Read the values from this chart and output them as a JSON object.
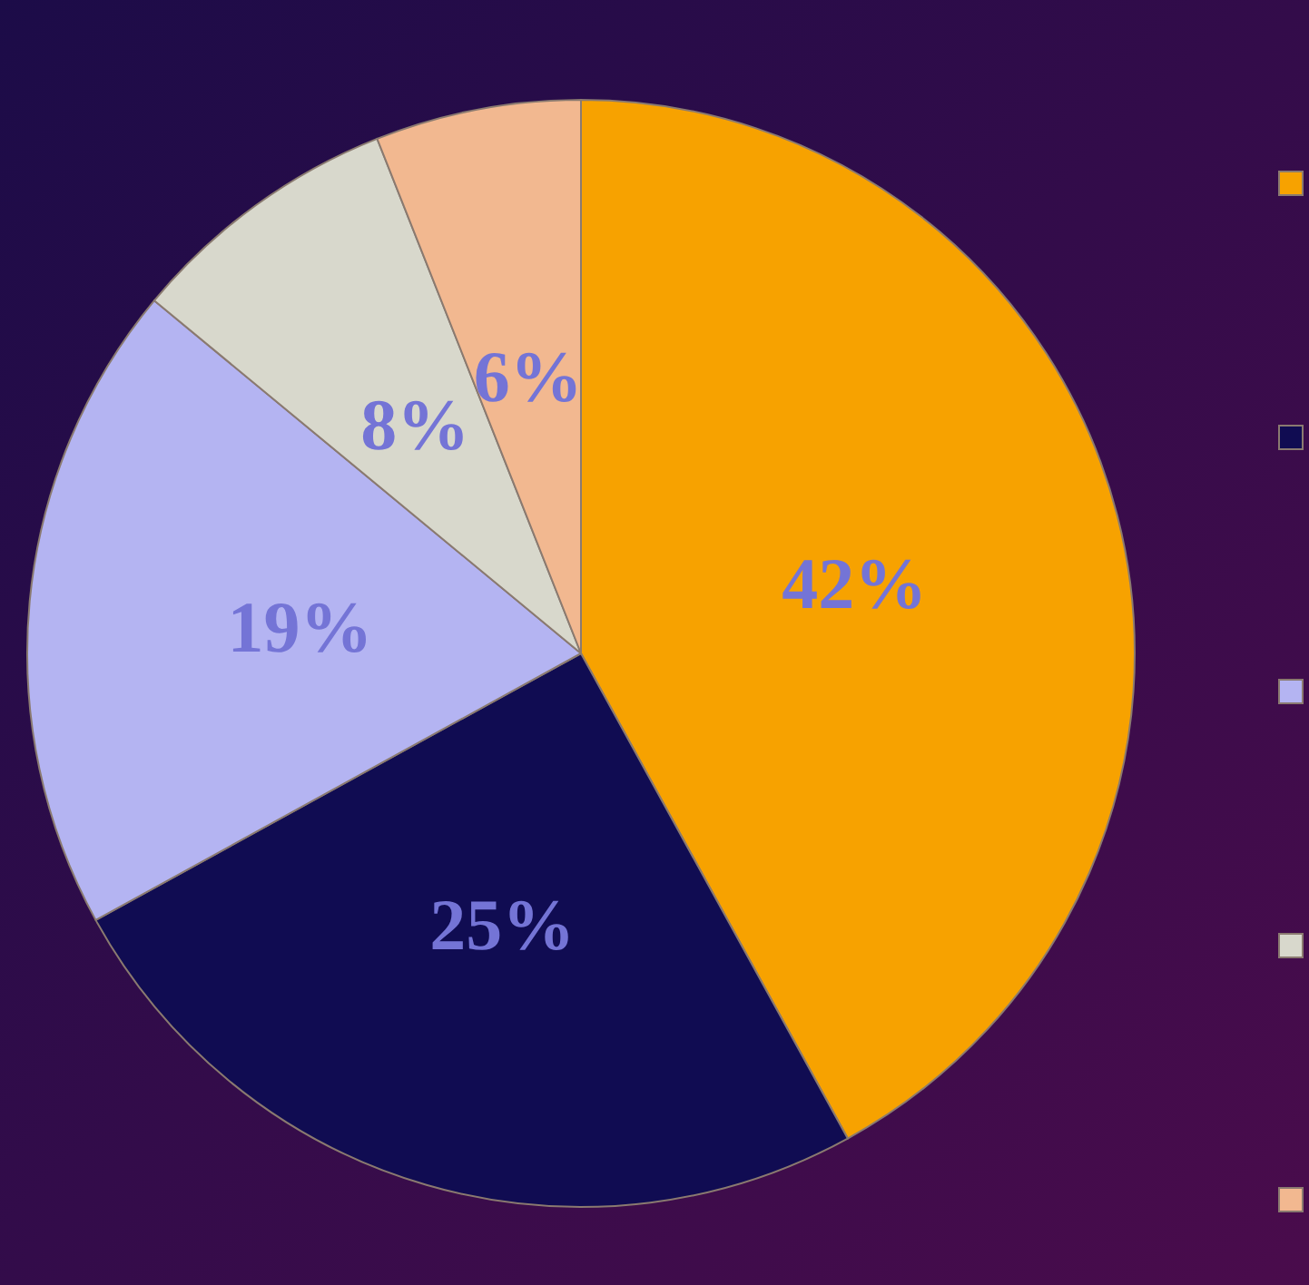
{
  "chart_data": {
    "type": "pie",
    "categories": [
      null,
      null,
      null,
      null,
      null
    ],
    "values": [
      42,
      25,
      19,
      8,
      6
    ],
    "colors": [
      "#f7a200",
      "#100c52",
      "#b4b4f2",
      "#d8d8cc",
      "#f2b890"
    ],
    "value_labels": [
      "42%",
      "25%",
      "19%",
      "8%",
      "6%"
    ]
  }
}
